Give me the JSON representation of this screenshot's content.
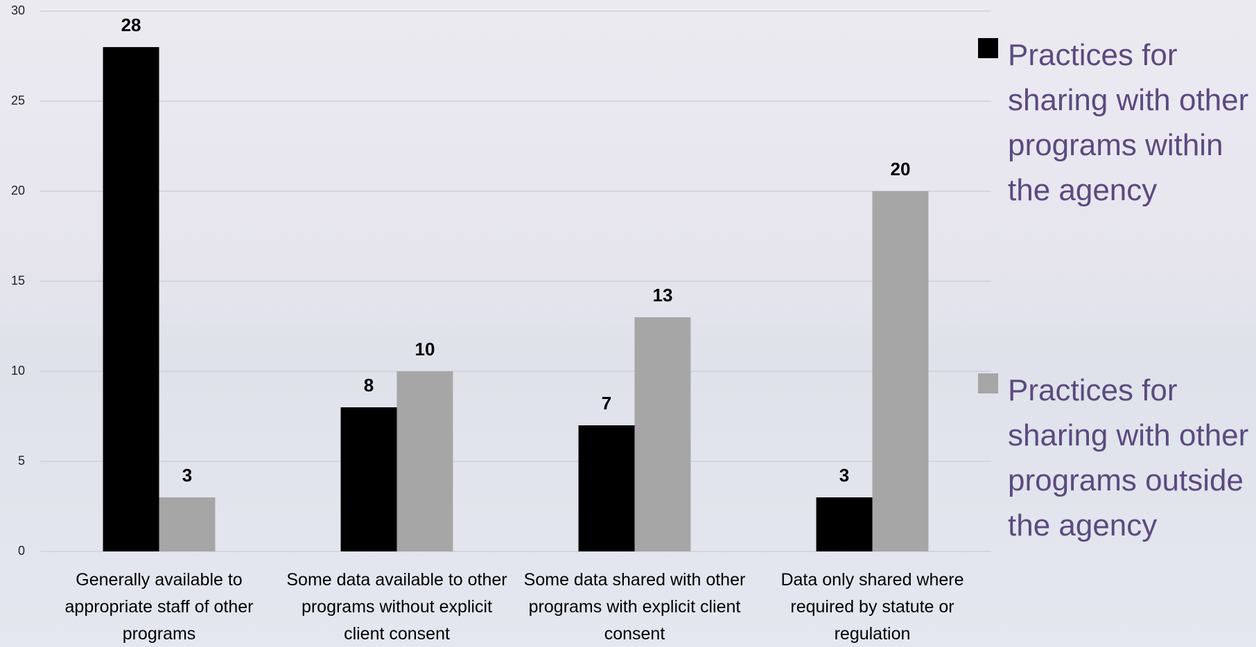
{
  "chart_data": {
    "type": "bar",
    "categories": [
      "Generally available to appropriate staff of other programs",
      "Some data available to other programs without explicit client consent",
      "Some data shared with other programs with explicit client consent",
      "Data only shared where required by statute or regulation"
    ],
    "series": [
      {
        "name": "Practices for sharing with other programs within the agency",
        "color": "#000000",
        "values": [
          28,
          8,
          7,
          3
        ]
      },
      {
        "name": "Practices for sharing with other programs outside the agency",
        "color": "#a6a6a6",
        "values": [
          3,
          10,
          13,
          20
        ]
      }
    ],
    "ylim": [
      0,
      30
    ],
    "yticks": [
      0,
      5,
      10,
      15,
      20,
      25,
      30
    ],
    "grid": true,
    "legend": "right"
  }
}
